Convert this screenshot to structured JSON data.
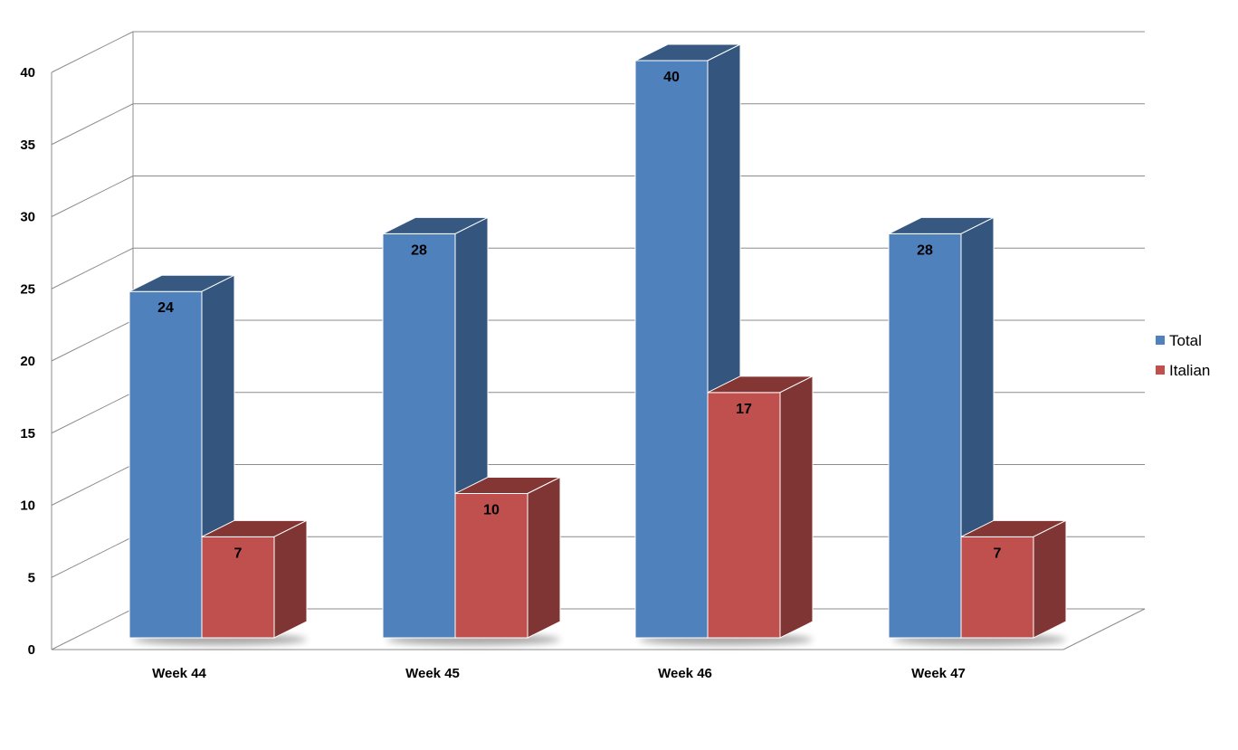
{
  "chart_data": {
    "type": "bar",
    "style": "3d-clustered-column",
    "categories": [
      "Week 44",
      "Week 45",
      "Week 46",
      "Week 47"
    ],
    "series": [
      {
        "name": "Total",
        "values": [
          24,
          28,
          40,
          28
        ],
        "color": "#4F81BD"
      },
      {
        "name": "Italian",
        "values": [
          7,
          10,
          17,
          7
        ],
        "color": "#C0504D"
      }
    ],
    "ylim": [
      0,
      40
    ],
    "yticks": [
      "0",
      "5",
      "10",
      "15",
      "20",
      "25",
      "30",
      "35",
      "40"
    ],
    "grid": true,
    "data_labels": true,
    "legend_position": "right"
  }
}
